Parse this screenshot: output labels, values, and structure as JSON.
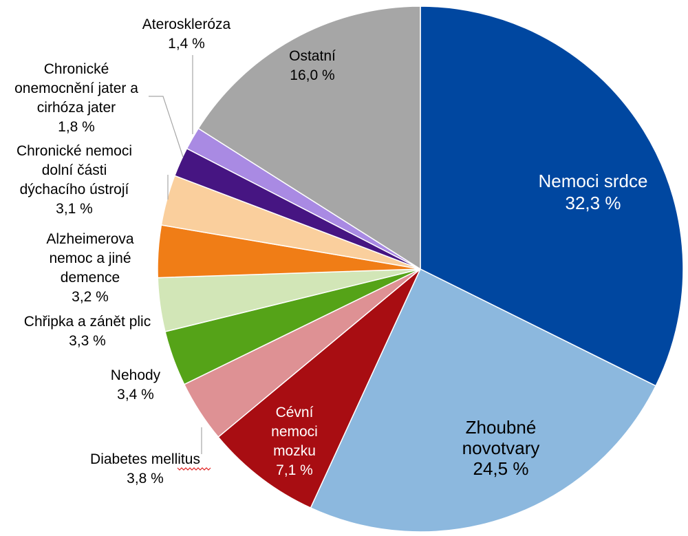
{
  "chart_data": {
    "type": "pie",
    "title": "",
    "start_angle_deg": 0,
    "direction": "clockwise",
    "slices": [
      {
        "label": "Nemoci srdce",
        "value": 32.3,
        "value_label": "32,3 %",
        "color": "#0047a0",
        "text_color": "#ffffff",
        "label_lines": [
          "Nemoci srdce"
        ]
      },
      {
        "label": "Zhoubné novotvary",
        "value": 24.5,
        "value_label": "24,5 %",
        "color": "#8cb8de",
        "text_color": "#000000",
        "label_lines": [
          "Zhoubné",
          "novotvary"
        ]
      },
      {
        "label": "Cévní nemoci mozku",
        "value": 7.1,
        "value_label": "7,1 %",
        "color": "#a80d12",
        "text_color": "#ffffff",
        "label_lines": [
          "Cévní",
          "nemoci",
          "mozku"
        ]
      },
      {
        "label": "Diabetes mellitus",
        "value": 3.8,
        "value_label": "3,8 %",
        "color": "#de9194",
        "text_color": "#000000",
        "label_lines": [
          "Diabetes mellitus"
        ]
      },
      {
        "label": "Nehody",
        "value": 3.4,
        "value_label": "3,4 %",
        "color": "#55a318",
        "text_color": "#000000",
        "label_lines": [
          "Nehody"
        ]
      },
      {
        "label": "Chřipka a zánět plic",
        "value": 3.3,
        "value_label": "3,3 %",
        "color": "#d2e6b7",
        "text_color": "#000000",
        "label_lines": [
          "Chřipka a zánět plic"
        ]
      },
      {
        "label": "Alzheimerova nemoc a jiné demence",
        "value": 3.2,
        "value_label": "3,2 %",
        "color": "#f07d16",
        "text_color": "#000000",
        "label_lines": [
          "Alzheimerova",
          "nemoc a jiné",
          "demence"
        ]
      },
      {
        "label": "Chronické nemoci dolní části dýchacího ústrojí",
        "value": 3.1,
        "value_label": "3,1 %",
        "color": "#facf9d",
        "text_color": "#000000",
        "label_lines": [
          "Chronické nemoci",
          "dolní části",
          "dýchacího ústrojí"
        ]
      },
      {
        "label": "Chronické onemocnění jater a cirhóza jater",
        "value": 1.8,
        "value_label": "1,8 %",
        "color": "#461582",
        "text_color": "#000000",
        "label_lines": [
          "Chronické",
          "onemocnění jater a",
          "cirhóza jater"
        ]
      },
      {
        "label": "Ateroskleróza",
        "value": 1.4,
        "value_label": "1,4 %",
        "color": "#a98ae3",
        "text_color": "#000000",
        "label_lines": [
          "Ateroskleróza"
        ]
      },
      {
        "label": "Ostatní",
        "value": 16.0,
        "value_label": "16,0 %",
        "color": "#a6a6a6",
        "text_color": "#000000",
        "label_lines": [
          "Ostatní"
        ]
      }
    ]
  }
}
